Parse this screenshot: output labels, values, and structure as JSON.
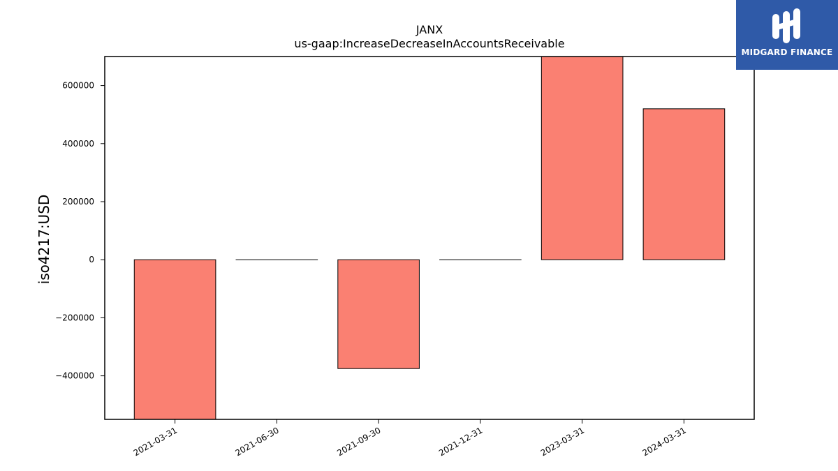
{
  "chart_data": {
    "type": "bar",
    "title": "JANX",
    "subtitle": "us-gaap:IncreaseDecreaseInAccountsReceivable",
    "xlabel": "",
    "ylabel": "iso4217:USD",
    "categories": [
      "2021-03-31",
      "2021-06-30",
      "2021-09-30",
      "2021-12-31",
      "2023-03-31",
      "2024-03-31"
    ],
    "values": [
      -560000,
      0,
      -375000,
      0,
      700000,
      520000
    ],
    "ylim": [
      -550000,
      700000
    ],
    "yticks": [
      -400000,
      -200000,
      0,
      200000,
      400000,
      600000
    ],
    "ytick_labels": [
      "−400000",
      "−200000",
      "0",
      "200000",
      "400000",
      "600000"
    ],
    "bar_color": "#fa8072",
    "grid": false
  },
  "logo": {
    "text": "MIDGARD FINANCE",
    "background": "#2f5aa8"
  }
}
